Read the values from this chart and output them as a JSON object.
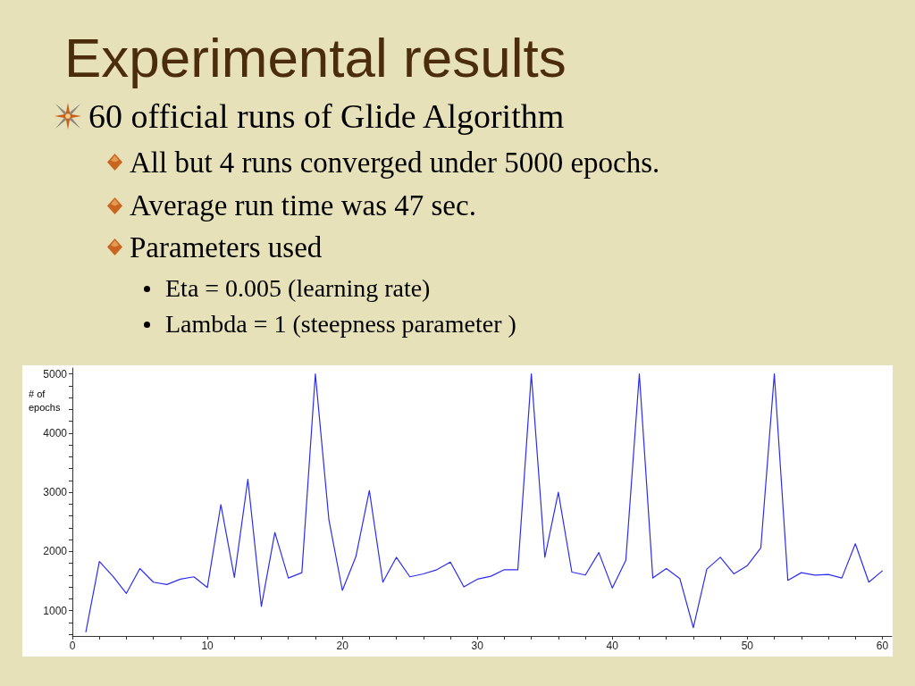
{
  "chart_data": {
    "type": "line",
    "title": "Experimental results",
    "ylabel": "# of epochs",
    "annotations": [
      "60 official runs of Glide Algorithm",
      "All but 4 runs converged under 5000 epochs.",
      "Average run time was 47 sec.",
      "Parameters used",
      "Eta = 0.005 (learning rate)",
      "Lambda = 1 (steepness parameter )"
    ],
    "x": [
      1,
      2,
      3,
      4,
      5,
      6,
      7,
      8,
      9,
      10,
      11,
      12,
      13,
      14,
      15,
      16,
      17,
      18,
      19,
      20,
      21,
      22,
      23,
      24,
      25,
      26,
      27,
      28,
      29,
      30,
      31,
      32,
      33,
      34,
      35,
      36,
      37,
      38,
      39,
      40,
      41,
      42,
      43,
      44,
      45,
      46,
      47,
      48,
      49,
      50,
      51,
      52,
      53,
      54,
      55,
      56,
      57,
      58,
      59,
      60
    ],
    "values": [
      640,
      1830,
      1580,
      1290,
      1710,
      1480,
      1440,
      1530,
      1570,
      1390,
      2790,
      1560,
      3220,
      1070,
      2320,
      1550,
      1640,
      5000,
      2540,
      1340,
      1910,
      3030,
      1480,
      1900,
      1570,
      1620,
      1690,
      1820,
      1400,
      1530,
      1580,
      1690,
      1690,
      5000,
      1900,
      3000,
      1650,
      1600,
      1980,
      1380,
      1850,
      5000,
      1550,
      1710,
      1540,
      710,
      1700,
      1900,
      1620,
      1760,
      2060,
      5000,
      1510,
      1640,
      1600,
      1610,
      1550,
      2130,
      1480,
      1670
    ],
    "color": "#2d2df0",
    "xlim": [
      0,
      60.7
    ],
    "xticks": [
      0,
      {
        "value": 2,
        "label": null
      },
      {
        "value": 4,
        "label": null
      },
      {
        "value": 6,
        "label": null
      },
      {
        "value": 8,
        "label": null
      },
      10,
      {
        "value": 12,
        "label": null
      },
      {
        "value": 14,
        "label": null
      },
      {
        "value": 16,
        "label": null
      },
      {
        "value": 18,
        "label": null
      },
      20,
      {
        "value": 22,
        "label": null
      },
      {
        "value": 24,
        "label": null
      },
      {
        "value": 26,
        "label": null
      },
      {
        "value": 28,
        "label": null
      },
      30,
      {
        "value": 32,
        "label": null
      },
      {
        "value": 34,
        "label": null
      },
      {
        "value": 36,
        "label": null
      },
      {
        "value": 38,
        "label": null
      },
      40,
      {
        "value": 42,
        "label": null
      },
      {
        "value": 44,
        "label": null
      },
      {
        "value": 46,
        "label": null
      },
      {
        "value": 48,
        "label": null
      },
      50,
      {
        "value": 52,
        "label": null
      },
      {
        "value": 54,
        "label": null
      },
      {
        "value": 56,
        "label": null
      },
      {
        "value": 58,
        "label": null
      },
      60
    ],
    "ylim": [
      570,
      5100
    ],
    "yticks": [
      {
        "value": 600,
        "label": null
      },
      {
        "value": 800,
        "label": null
      },
      1000,
      {
        "value": 1200,
        "label": null
      },
      {
        "value": 1400,
        "label": null
      },
      {
        "value": 1600,
        "label": null
      },
      {
        "value": 1800,
        "label": null
      },
      2000,
      {
        "value": 2200,
        "label": null
      },
      {
        "value": 2400,
        "label": null
      },
      {
        "value": 2600,
        "label": null
      },
      {
        "value": 2800,
        "label": null
      },
      3000,
      {
        "value": 3200,
        "label": null
      },
      {
        "value": 3400,
        "label": null
      },
      {
        "value": 3600,
        "label": null
      },
      {
        "value": 3800,
        "label": null
      },
      4000,
      {
        "value": 4200,
        "label": null
      },
      {
        "value": 4400,
        "label": null
      },
      {
        "value": 4600,
        "label": null
      },
      {
        "value": 4800,
        "label": null
      },
      5000
    ]
  }
}
